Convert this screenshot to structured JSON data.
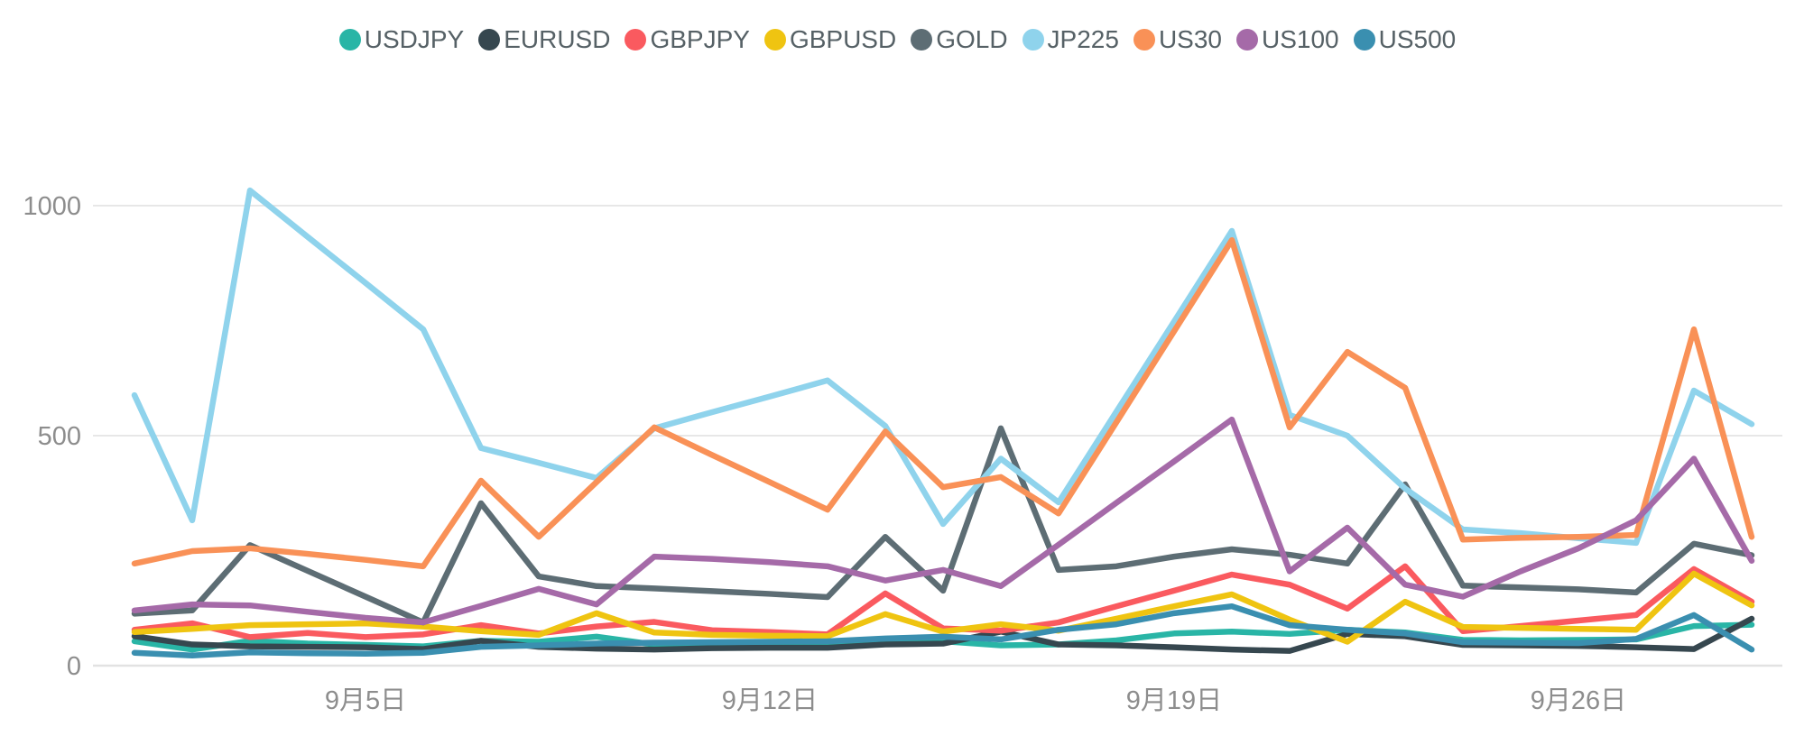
{
  "legend": {
    "items": [
      {
        "label": "USDJPY",
        "color": "#29b5a6"
      },
      {
        "label": "EURUSD",
        "color": "#36474f"
      },
      {
        "label": "GBPJPY",
        "color": "#fa5a5f"
      },
      {
        "label": "GBPUSD",
        "color": "#efc411"
      },
      {
        "label": "GOLD",
        "color": "#5d6d74"
      },
      {
        "label": "JP225",
        "color": "#8fd3ec"
      },
      {
        "label": "US30",
        "color": "#f99157"
      },
      {
        "label": "US100",
        "color": "#a56aa8"
      },
      {
        "label": "US500",
        "color": "#3a8fb0"
      }
    ]
  },
  "chart_data": {
    "type": "line",
    "grid": true,
    "legend_position": "top-center",
    "ylim": [
      0,
      1100
    ],
    "y_ticks": [
      {
        "value": 0,
        "label": "0"
      },
      {
        "value": 500,
        "label": "500"
      },
      {
        "value": 1000,
        "label": "1000"
      }
    ],
    "x_points": 29,
    "x_tick_labels": [
      {
        "index": 4,
        "label": "9月5日"
      },
      {
        "index": 11,
        "label": "9月12日"
      },
      {
        "index": 18,
        "label": "9月19日"
      },
      {
        "index": 25,
        "label": "9月26日"
      }
    ],
    "series": [
      {
        "name": "USDJPY",
        "color": "#29b5a6",
        "values": [
          53,
          35,
          54,
          48,
          45,
          42,
          54,
          52,
          63,
          46,
          45,
          45,
          45,
          56,
          53,
          44,
          46,
          55,
          70,
          74,
          69,
          78,
          72,
          56,
          55,
          56,
          57,
          86,
          89
        ]
      },
      {
        "name": "EURUSD",
        "color": "#36474f",
        "values": [
          64,
          46,
          42,
          41,
          40,
          36,
          54,
          41,
          37,
          35,
          38,
          39,
          39,
          46,
          48,
          74,
          46,
          44,
          40,
          35,
          32,
          69,
          64,
          45,
          44,
          43,
          40,
          36,
          102
        ]
      },
      {
        "name": "GBPJPY",
        "color": "#fa5a5f",
        "values": [
          78,
          92,
          62,
          71,
          62,
          68,
          88,
          70,
          85,
          95,
          77,
          73,
          68,
          157,
          81,
          76,
          94,
          129,
          163,
          198,
          176,
          124,
          216,
          75,
          86,
          98,
          110,
          210,
          139
        ]
      },
      {
        "name": "GBPUSD",
        "color": "#efc411",
        "values": [
          73,
          80,
          88,
          90,
          92,
          85,
          75,
          67,
          114,
          72,
          67,
          65,
          64,
          112,
          74,
          90,
          76,
          102,
          129,
          155,
          100,
          52,
          139,
          84,
          82,
          80,
          78,
          200,
          131
        ]
      },
      {
        "name": "GOLD",
        "color": "#5d6d74",
        "values": [
          113,
          120,
          262,
          206,
          150,
          94,
          353,
          194,
          173,
          168,
          162,
          156,
          149,
          280,
          163,
          516,
          208,
          216,
          237,
          253,
          241,
          222,
          394,
          174,
          170,
          166,
          159,
          265,
          240
        ]
      },
      {
        "name": "JP225",
        "color": "#8fd3ec",
        "values": [
          588,
          316,
          1033,
          932,
          832,
          731,
          473,
          441,
          408,
          516,
          551,
          585,
          620,
          521,
          308,
          450,
          355,
          552,
          748,
          945,
          545,
          500,
          385,
          296,
          288,
          277,
          267,
          598,
          525
        ]
      },
      {
        "name": "US30",
        "color": "#f99157",
        "values": [
          222,
          249,
          255,
          243,
          230,
          216,
          402,
          280,
          399,
          518,
          458,
          399,
          339,
          509,
          388,
          410,
          331,
          529,
          727,
          925,
          518,
          682,
          604,
          274,
          278,
          280,
          284,
          731,
          280
        ]
      },
      {
        "name": "US100",
        "color": "#a56aa8",
        "values": [
          120,
          133,
          131,
          117,
          104,
          94,
          130,
          167,
          133,
          237,
          232,
          225,
          216,
          185,
          208,
          173,
          263,
          354,
          444,
          535,
          205,
          300,
          176,
          150,
          205,
          255,
          316,
          450,
          228
        ]
      },
      {
        "name": "US500",
        "color": "#3a8fb0",
        "values": [
          28,
          22,
          29,
          27,
          26,
          28,
          41,
          44,
          48,
          50,
          51,
          52,
          53,
          59,
          63,
          57,
          78,
          90,
          114,
          129,
          88,
          78,
          70,
          51,
          50,
          49,
          58,
          110,
          35
        ]
      }
    ]
  },
  "axis_style": {
    "tick_color": "#8d8d8d",
    "grid_color": "#e7e7e7",
    "axis_line_color": "#e2e2e2"
  }
}
